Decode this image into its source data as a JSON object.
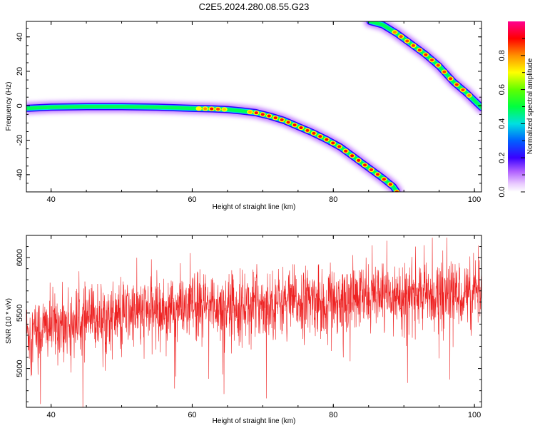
{
  "title": "C2E5.2024.280.08.55.G23",
  "chart_data": [
    {
      "type": "heatmap",
      "xlabel": "Height of straight line (km)",
      "ylabel": "Frequency (Hz)",
      "xlim": [
        36.5,
        101
      ],
      "ylim": [
        -50,
        49
      ],
      "xticks": [
        "40",
        "60",
        "80",
        "100"
      ],
      "xtick_values": [
        40,
        60,
        80,
        100
      ],
      "yticks": [
        "40",
        "20",
        "0",
        "-20",
        "-40"
      ],
      "ytick_values": [
        40,
        20,
        0,
        -20,
        -40
      ],
      "colorbar": {
        "label": "Normalized spectral amplitude",
        "range": [
          0,
          1
        ],
        "ticks": [
          "0.0",
          "0.2",
          "0.4",
          "0.6",
          "0.8"
        ],
        "tick_values": [
          0.0,
          0.2,
          0.4,
          0.6,
          0.8
        ]
      },
      "traces": [
        {
          "x": [
            36.5,
            40,
            45,
            50,
            55,
            60,
            63,
            65,
            67,
            69,
            71,
            73,
            75,
            77,
            79,
            81,
            83,
            85,
            87,
            88.5,
            89
          ],
          "y": [
            -1.5,
            -0.8,
            -0.5,
            -0.5,
            -0.8,
            -1.5,
            -1.8,
            -2.2,
            -3,
            -4,
            -6,
            -8.5,
            -12,
            -15.5,
            -19.5,
            -24,
            -30,
            -36,
            -42,
            -47,
            -50
          ],
          "amplitude": [
            0.6,
            0.45,
            0.42,
            0.45,
            0.5,
            0.6,
            0.92,
            0.7,
            0.55,
            0.92,
            0.9,
            0.88,
            0.9,
            0.88,
            0.9,
            0.88,
            0.9,
            0.88,
            0.88,
            0.88,
            0.88
          ]
        },
        {
          "x": [
            85.2,
            87,
            89,
            91,
            93,
            95,
            97,
            99,
            101
          ],
          "y": [
            49,
            47,
            42,
            36,
            30,
            23,
            14,
            7,
            -1
          ],
          "amplitude": [
            0.5,
            0.55,
            0.85,
            0.85,
            0.88,
            0.85,
            0.88,
            0.85,
            0.5
          ]
        }
      ]
    },
    {
      "type": "line",
      "xlabel": "Height of straight line (km)",
      "ylabel": "SNR (10 * v/v)",
      "xlim": [
        36.5,
        101
      ],
      "ylim": [
        4650,
        6200
      ],
      "xticks": [
        "40",
        "60",
        "80",
        "100"
      ],
      "xtick_values": [
        40,
        60,
        80,
        100
      ],
      "yticks": [
        "6000",
        "5500",
        "5000"
      ],
      "ytick_values": [
        6000,
        5500,
        5000
      ],
      "series": [
        {
          "color": "#ee2222",
          "n_points": 2000,
          "trend": {
            "x": [
              36.5,
              40,
              45,
              50,
              55,
              60,
              65,
              70,
              75,
              80,
              85,
              90,
              95,
              101
            ],
            "y": [
              5320,
              5380,
              5440,
              5490,
              5530,
              5560,
              5570,
              5590,
              5600,
              5620,
              5640,
              5660,
              5670,
              5680
            ]
          },
          "noise_sd": 150,
          "spikes": [
            {
              "x": 38.5,
              "y": 4680
            },
            {
              "x": 44.5,
              "y": 4650
            },
            {
              "x": 57.5,
              "y": 4820
            },
            {
              "x": 64.5,
              "y": 4770
            },
            {
              "x": 70.5,
              "y": 4730
            },
            {
              "x": 90.5,
              "y": 4870
            },
            {
              "x": 96.5,
              "y": 4900
            },
            {
              "x": 96.1,
              "y": 6180
            },
            {
              "x": 59.7,
              "y": 6040
            },
            {
              "x": 85.5,
              "y": 6110
            }
          ]
        }
      ]
    }
  ]
}
